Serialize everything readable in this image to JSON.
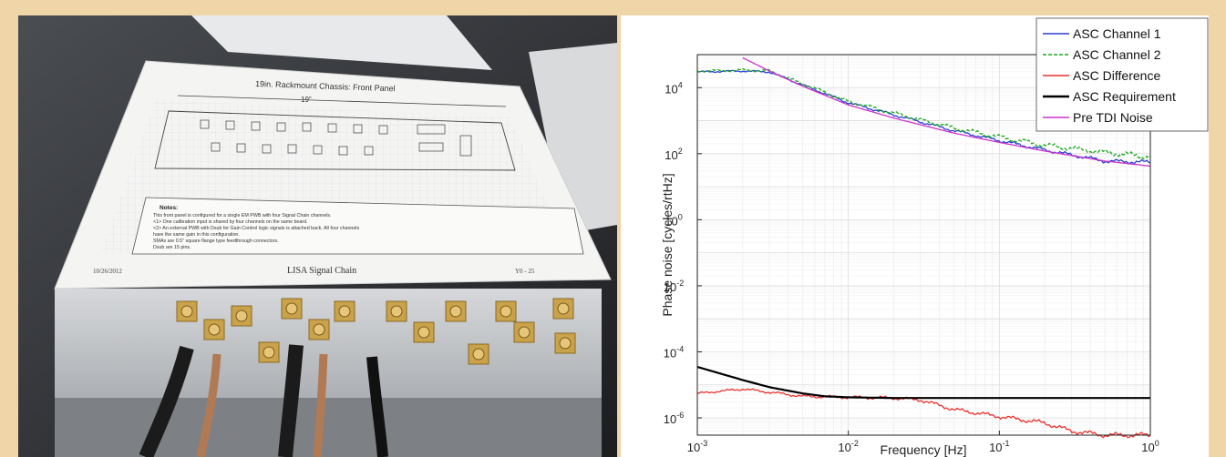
{
  "photo": {
    "sheet_title": "19in. Rackmount Chassis:     Front Panel",
    "sheet_dimension": "19\"",
    "sheet_notes_title": "Notes:",
    "sheet_notes": [
      "This front panel is configured for a single EM PWB with four Signal Chain channels.",
      "<1>  One calibration input is shared by four channels on the same board.",
      "<2>  An external PWB with Dsub for Gain Control logic signals is attached back. All four channels",
      "      have the same gain in this configuration.",
      "SMAs are 0.5\" square flange type feedthrough connectors.",
      "Dsub are 15 pins."
    ],
    "sheet_date": "10/26/2012",
    "sheet_footer": "LISA Signal Chain",
    "sheet_page": "Y0 - 25",
    "colors": {
      "chassis": "#c9cbcf",
      "paper": "#f4f4f2",
      "connector": "#c9a24a"
    }
  },
  "chart_data": {
    "type": "line",
    "x_scale": "log",
    "y_scale": "log",
    "xlim": [
      0.001,
      1
    ],
    "ylim": [
      3e-07,
      100000
    ],
    "xlabel": "Frequency [Hz]",
    "ylabel": "Phase noise [cycles/rtHz]",
    "x_ticks": [
      {
        "value": 0.001,
        "base": "10",
        "exp": "-3"
      },
      {
        "value": 0.01,
        "base": "10",
        "exp": "-2"
      },
      {
        "value": 0.1,
        "base": "10",
        "exp": "-1"
      },
      {
        "value": 1,
        "base": "10",
        "exp": "0"
      }
    ],
    "y_ticks": [
      {
        "value": 1e-06,
        "base": "10",
        "exp": "-6"
      },
      {
        "value": 0.0001,
        "base": "10",
        "exp": "-4"
      },
      {
        "value": 0.01,
        "base": "10",
        "exp": "-2"
      },
      {
        "value": 1,
        "base": "10",
        "exp": "0"
      },
      {
        "value": 100,
        "base": "10",
        "exp": "2"
      },
      {
        "value": 10000,
        "base": "10",
        "exp": "4"
      }
    ],
    "grid": true,
    "legend_position": "top-right",
    "series": [
      {
        "name": "ASC Channel 1",
        "color": "#2b3fd6",
        "style": "solid",
        "x": [
          0.001,
          0.002,
          0.003,
          0.005,
          0.01,
          0.02,
          0.05,
          0.1,
          0.2,
          0.5,
          1
        ],
        "y": [
          30000,
          32000,
          30000,
          12000,
          3500,
          1500,
          500,
          250,
          130,
          60,
          55
        ]
      },
      {
        "name": "ASC Channel 2",
        "color": "#1aa81a",
        "style": "dashed",
        "x": [
          0.001,
          0.002,
          0.003,
          0.005,
          0.01,
          0.02,
          0.05,
          0.1,
          0.2,
          0.5,
          1
        ],
        "y": [
          32000,
          34000,
          32000,
          13000,
          3800,
          1700,
          600,
          320,
          180,
          110,
          80
        ]
      },
      {
        "name": "ASC Difference",
        "color": "#e8322f",
        "style": "solid",
        "x": [
          0.001,
          0.002,
          0.005,
          0.01,
          0.02,
          0.03,
          0.05,
          0.1,
          0.2,
          0.3,
          0.5,
          1
        ],
        "y": [
          5.5e-06,
          7.5e-06,
          4.5e-06,
          4.2e-06,
          4e-06,
          3.5e-06,
          1.8e-06,
          1.1e-06,
          7e-07,
          4e-07,
          3e-07,
          3e-07
        ]
      },
      {
        "name": "ASC Requirement",
        "color": "#000000",
        "style": "solid",
        "x": [
          0.001,
          0.002,
          0.003,
          0.005,
          0.007,
          0.01,
          0.02,
          0.05,
          0.1,
          0.5,
          1
        ],
        "y": [
          3.5e-05,
          1.4e-05,
          8.5e-06,
          5.5e-06,
          4.5e-06,
          4.2e-06,
          4e-06,
          4e-06,
          4e-06,
          4e-06,
          4e-06
        ]
      },
      {
        "name": "Pre TDI Noise",
        "color": "#cc33cc",
        "style": "solid",
        "x": [
          0.002,
          0.003,
          0.005,
          0.01,
          0.02,
          0.05,
          0.1,
          0.2,
          0.5,
          1
        ],
        "y": [
          80000,
          32000,
          11000,
          3000,
          1200,
          420,
          220,
          120,
          60,
          42
        ]
      }
    ]
  }
}
